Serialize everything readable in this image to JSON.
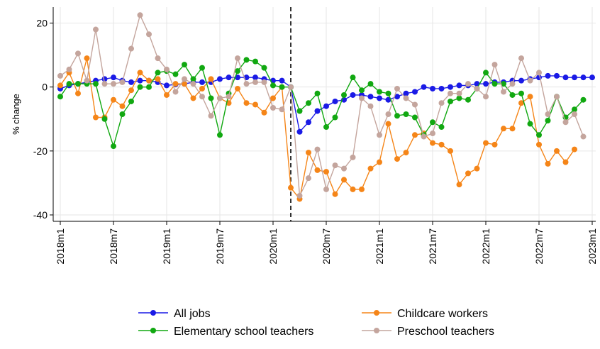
{
  "chart_data": {
    "type": "line",
    "ylabel": "% change",
    "xlabel": "",
    "ylim": [
      -42,
      25
    ],
    "yticks": [
      20,
      0,
      -20,
      -40
    ],
    "x_start": "2018m1",
    "x_end": "2022m12",
    "xticks": [
      "2018m1",
      "2018m7",
      "2019m1",
      "2019m7",
      "2020m1",
      "2020m7",
      "2021m1",
      "2021m7",
      "2022m1",
      "2022m7",
      "2023m1"
    ],
    "reference_line": "2020m3",
    "grid": true,
    "legend_position": "bottom",
    "series": [
      {
        "name": "All jobs",
        "color": "#1a1ae6",
        "values": [
          -0.5,
          0.5,
          1,
          1.5,
          2,
          2.5,
          3,
          2,
          1.5,
          2,
          2,
          1.5,
          0.5,
          0.8,
          1,
          1.5,
          1.5,
          1.5,
          2.5,
          3,
          3,
          3,
          3,
          2.5,
          2,
          2,
          0,
          -14,
          -11,
          -7.5,
          -6,
          -4.5,
          -4,
          -2.5,
          -2.5,
          -3,
          -3.5,
          -4,
          -3,
          -2,
          -1.5,
          0,
          -0.5,
          -0.5,
          0,
          0.5,
          0.5,
          1,
          1,
          1.5,
          1.5,
          2,
          2,
          2.5,
          3,
          3.5,
          3.5,
          3,
          3,
          3,
          3
        ]
      },
      {
        "name": "Childcare workers",
        "color": "#f58518",
        "values": [
          0.5,
          4.5,
          -2,
          9,
          -9.5,
          -9.5,
          -4,
          -6,
          -1,
          4.5,
          2,
          2.5,
          -2.5,
          1,
          1,
          -3.5,
          -0.5,
          2.5,
          -3.5,
          -5,
          -0.5,
          -5,
          -5.5,
          -8,
          -3.5,
          0,
          -31.5,
          -35,
          -20.5,
          -26,
          -26.5,
          -33.5,
          -29,
          -32,
          -32,
          -25.5,
          -23.5,
          -11.5,
          -22.5,
          -20.5,
          -15,
          -14.5,
          -17.5,
          -18,
          -20,
          -30.5,
          -27,
          -25.5,
          -17.5,
          -18,
          -13,
          -13,
          -5,
          -3,
          -18,
          -24,
          -20,
          -23.5,
          -19.5
        ]
      },
      {
        "name": "Elementary school teachers",
        "color": "#11a811",
        "values": [
          -3,
          1,
          1,
          1,
          1,
          -10,
          -18.5,
          -8.5,
          -4.5,
          0,
          0,
          4.5,
          5,
          4,
          7,
          2.5,
          6,
          -3.5,
          -15,
          -2,
          5,
          8.5,
          8,
          6,
          0.5,
          0,
          0,
          -7.5,
          -5,
          -2,
          -12.5,
          -9.5,
          -2.5,
          3,
          -1,
          1,
          -1.5,
          -2,
          -9,
          -8.5,
          -9.5,
          -15,
          -11,
          -12.5,
          -4.5,
          -3.5,
          -4,
          -0.5,
          4.5,
          1,
          1,
          -2.5,
          -2,
          -11.5,
          -15,
          -10.5,
          -3,
          -9.5,
          -7,
          -4
        ]
      },
      {
        "name": "Preschool teachers",
        "color": "#c4a59d",
        "values": [
          3.5,
          5.5,
          10.5,
          2,
          18,
          1,
          1,
          1.5,
          12,
          22.5,
          16.5,
          9,
          5.5,
          -1.5,
          2.5,
          1,
          -3,
          -9,
          -3.5,
          -3,
          9,
          1,
          1.5,
          1.5,
          -6.5,
          -7,
          0,
          -34,
          -28.5,
          -19.5,
          -32,
          -24.5,
          -25.5,
          -22,
          -3.5,
          -6,
          -15,
          -8.5,
          -0.5,
          -3.5,
          -5.5,
          -15.5,
          -14.5,
          -5,
          -2,
          -2,
          1,
          -0.5,
          -3,
          7,
          -1.5,
          1,
          9,
          2,
          4.5,
          -8.5,
          -3,
          -11,
          -8.5,
          -15.5
        ]
      }
    ]
  }
}
